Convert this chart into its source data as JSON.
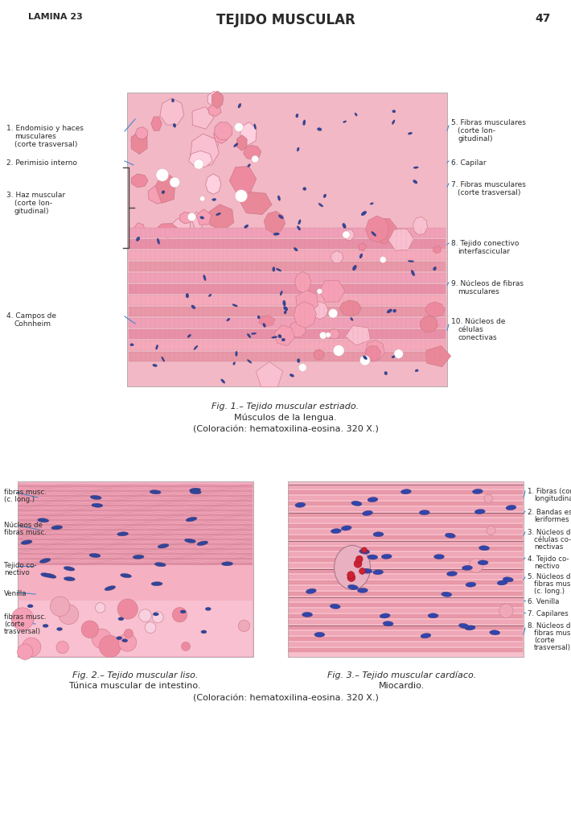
{
  "page_title": "TEJIDO MUSCULAR",
  "page_label_left": "LAMINA 23",
  "page_number": "47",
  "fig1_caption_line1": "Fig. 1.– Tejido muscular estriado.",
  "fig1_caption_line2": "Músculos de la lengua.",
  "fig1_caption_line3": "(Coloración: hematoxilina-eosina. 320 X.)",
  "fig2_caption_line1": "Fig. 2.– Tejido muscular liso.",
  "fig2_caption_line2": "Túnica muscular de intestino.",
  "fig3_caption_line1": "Fig. 3.– Tejido muscular cardíaco.",
  "fig3_caption_line2": "Miocardio.",
  "bottom_caption": "(Coloración: hematoxilina-eosina. 320 X.)",
  "line_color": "#4488cc",
  "text_color": "#2a2a2a"
}
